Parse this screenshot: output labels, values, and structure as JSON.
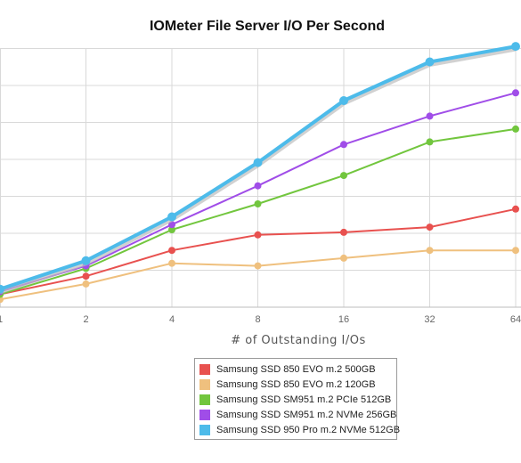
{
  "chart_data": {
    "type": "line",
    "title": "IOMeter File Server I/O Per Second",
    "xlabel": "# of Outstanding I/Os",
    "ylabel": "",
    "categories": [
      "1",
      "2",
      "4",
      "8",
      "16",
      "32",
      "64"
    ],
    "ylim": [
      0,
      100
    ],
    "grid": true,
    "legend_position": "bottom-center",
    "series": [
      {
        "name": "Samsung SSD 850 EVO m.2 500GB",
        "color": "#e8514f",
        "values": [
          5,
          12,
          22,
          28,
          29,
          31,
          38
        ]
      },
      {
        "name": "Samsung SSD 850 EVO m.2 120GB",
        "color": "#efc07e",
        "values": [
          3,
          9,
          17,
          16,
          19,
          22,
          22
        ]
      },
      {
        "name": "Samsung SSD SM951 m.2 PCIe 512GB",
        "color": "#72c63e",
        "values": [
          5,
          15,
          30,
          40,
          51,
          64,
          69
        ]
      },
      {
        "name": "Samsung SSD SM951 m.2 NVMe 256GB",
        "color": "#a04de8",
        "values": [
          6,
          16,
          32,
          47,
          63,
          74,
          83
        ]
      },
      {
        "name": "Samsung SSD 950 Pro m.2 NVMe 512GB",
        "color": "#4dbbea",
        "values": [
          7,
          18,
          35,
          56,
          80,
          95,
          101
        ]
      }
    ]
  }
}
